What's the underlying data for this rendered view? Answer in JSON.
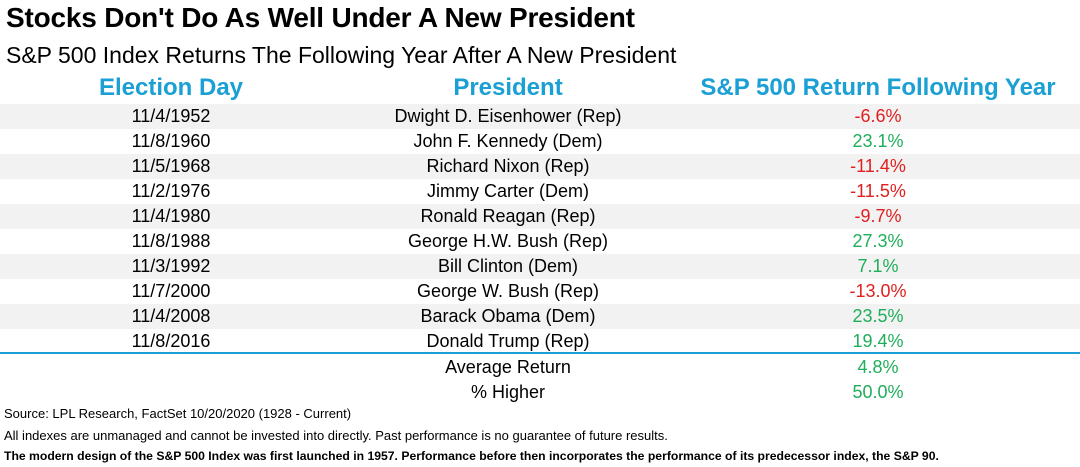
{
  "chart_data": {
    "type": "table",
    "title": "Stocks Don't Do As Well Under A New President",
    "subtitle": "S&P 500 Index Returns The Following Year After A New President",
    "columns": [
      "Election Day",
      "President",
      "S&P 500 Return Following Year"
    ],
    "rows": [
      {
        "date": "11/4/1952",
        "president": "Dwight D. Eisenhower (Rep)",
        "return": "-6.6%",
        "value": -6.6
      },
      {
        "date": "11/8/1960",
        "president": "John F. Kennedy (Dem)",
        "return": "23.1%",
        "value": 23.1
      },
      {
        "date": "11/5/1968",
        "president": "Richard Nixon (Rep)",
        "return": "-11.4%",
        "value": -11.4
      },
      {
        "date": "11/2/1976",
        "president": "Jimmy Carter (Dem)",
        "return": "-11.5%",
        "value": -11.5
      },
      {
        "date": "11/4/1980",
        "president": "Ronald Reagan (Rep)",
        "return": "-9.7%",
        "value": -9.7
      },
      {
        "date": "11/8/1988",
        "president": "George H.W. Bush (Rep)",
        "return": "27.3%",
        "value": 27.3
      },
      {
        "date": "11/3/1992",
        "president": "Bill Clinton (Dem)",
        "return": "7.1%",
        "value": 7.1
      },
      {
        "date": "11/7/2000",
        "president": "George W. Bush (Rep)",
        "return": "-13.0%",
        "value": -13.0
      },
      {
        "date": "11/4/2008",
        "president": "Barack Obama (Dem)",
        "return": "23.5%",
        "value": 23.5
      },
      {
        "date": "11/8/2016",
        "president": "Donald Trump (Rep)",
        "return": "19.4%",
        "value": 19.4
      }
    ],
    "summary": [
      {
        "label": "Average Return",
        "value": "4.8%"
      },
      {
        "label": "% Higher",
        "value": "50.0%"
      }
    ]
  },
  "footer": {
    "source": "Source: LPL Research, FactSet 10/20/2020 (1928 - Current)",
    "disclaimer": "All indexes are unmanaged and cannot be invested into directly. Past performance is no guarantee of future results.",
    "note": "The modern design of the S&P 500 Index was first launched in 1957. Performance before then incorporates the performance of its  predecessor index, the S&P 90."
  },
  "colors": {
    "header": "#1aa0d4",
    "positive": "#1fae5a",
    "negative": "#e0201f",
    "stripe": "#f2f2f2"
  }
}
